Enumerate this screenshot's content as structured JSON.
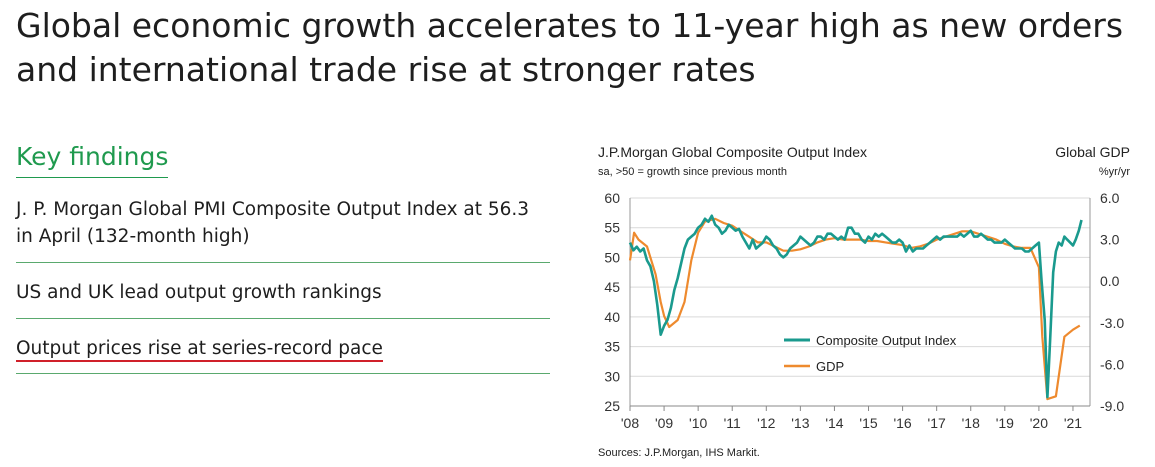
{
  "headline": "Global economic growth accelerates to 11-year high as new orders and international trade rise at stronger rates",
  "key_findings": {
    "title": "Key findings",
    "items": [
      "J. P. Morgan Global PMI Composite Output Index at 56.3 in April (132-month high)",
      "US and UK lead output growth rankings",
      "Output prices rise at series-record pace"
    ]
  },
  "chart_data": {
    "type": "line",
    "title": "J.P.Morgan Global Composite Output Index",
    "subtitle": "sa, >50 = growth since previous month",
    "right_title": "Global GDP",
    "right_unit": "%yr/yr",
    "source": "Sources: J.P.Morgan, IHS Markit.",
    "x_tick_labels": [
      "'08",
      "'09",
      "'10",
      "'11",
      "'12",
      "'13",
      "'14",
      "'15",
      "'16",
      "'17",
      "'18",
      "'19",
      "'20",
      "'21"
    ],
    "xlim": [
      2008,
      2021.5
    ],
    "y_left": {
      "lim": [
        25,
        60
      ],
      "ticks": [
        "25",
        "30",
        "35",
        "40",
        "45",
        "50",
        "55",
        "60"
      ]
    },
    "y_right": {
      "lim": [
        -9.0,
        6.0
      ],
      "ticks": [
        "-9.0",
        "-6.0",
        "-3.0",
        "0.0",
        "3.0",
        "6.0"
      ]
    },
    "colors": {
      "composite": "#1a9a8e",
      "gdp": "#ee8a2e"
    },
    "legend_position": "bottom-center",
    "series": [
      {
        "name": "Composite Output Index",
        "axis": "left",
        "points": [
          [
            2008.0,
            52.5
          ],
          [
            2008.1,
            51.2
          ],
          [
            2008.2,
            51.8
          ],
          [
            2008.3,
            51.0
          ],
          [
            2008.4,
            51.5
          ],
          [
            2008.5,
            49.5
          ],
          [
            2008.6,
            48.5
          ],
          [
            2008.7,
            46.0
          ],
          [
            2008.8,
            42.0
          ],
          [
            2008.9,
            37.0
          ],
          [
            2009.0,
            38.5
          ],
          [
            2009.1,
            39.5
          ],
          [
            2009.2,
            41.5
          ],
          [
            2009.3,
            44.5
          ],
          [
            2009.4,
            46.5
          ],
          [
            2009.5,
            49.0
          ],
          [
            2009.6,
            51.5
          ],
          [
            2009.7,
            53.0
          ],
          [
            2009.8,
            53.5
          ],
          [
            2009.9,
            54.0
          ],
          [
            2010.0,
            55.0
          ],
          [
            2010.1,
            55.5
          ],
          [
            2010.2,
            56.5
          ],
          [
            2010.3,
            56.0
          ],
          [
            2010.4,
            57.0
          ],
          [
            2010.5,
            55.5
          ],
          [
            2010.6,
            55.0
          ],
          [
            2010.7,
            54.0
          ],
          [
            2010.8,
            54.5
          ],
          [
            2010.9,
            55.5
          ],
          [
            2011.0,
            55.0
          ],
          [
            2011.1,
            54.5
          ],
          [
            2011.2,
            54.8
          ],
          [
            2011.3,
            53.5
          ],
          [
            2011.4,
            52.5
          ],
          [
            2011.5,
            51.5
          ],
          [
            2011.6,
            53.0
          ],
          [
            2011.7,
            51.5
          ],
          [
            2011.8,
            52.0
          ],
          [
            2011.9,
            52.5
          ],
          [
            2012.0,
            53.5
          ],
          [
            2012.1,
            53.0
          ],
          [
            2012.2,
            52.0
          ],
          [
            2012.3,
            51.5
          ],
          [
            2012.4,
            50.5
          ],
          [
            2012.5,
            50.0
          ],
          [
            2012.6,
            50.5
          ],
          [
            2012.7,
            51.5
          ],
          [
            2012.8,
            52.0
          ],
          [
            2012.9,
            52.5
          ],
          [
            2013.0,
            53.5
          ],
          [
            2013.1,
            53.0
          ],
          [
            2013.2,
            52.5
          ],
          [
            2013.3,
            52.0
          ],
          [
            2013.4,
            52.5
          ],
          [
            2013.5,
            53.5
          ],
          [
            2013.6,
            53.5
          ],
          [
            2013.7,
            53.0
          ],
          [
            2013.8,
            54.0
          ],
          [
            2013.9,
            54.0
          ],
          [
            2014.0,
            53.5
          ],
          [
            2014.1,
            53.0
          ],
          [
            2014.2,
            53.5
          ],
          [
            2014.3,
            53.0
          ],
          [
            2014.4,
            55.0
          ],
          [
            2014.5,
            55.0
          ],
          [
            2014.6,
            54.0
          ],
          [
            2014.7,
            54.0
          ],
          [
            2014.8,
            53.0
          ],
          [
            2014.9,
            52.5
          ],
          [
            2015.0,
            53.5
          ],
          [
            2015.1,
            53.0
          ],
          [
            2015.2,
            54.0
          ],
          [
            2015.3,
            53.5
          ],
          [
            2015.4,
            54.0
          ],
          [
            2015.5,
            53.5
          ],
          [
            2015.6,
            53.0
          ],
          [
            2015.7,
            52.5
          ],
          [
            2015.8,
            52.5
          ],
          [
            2015.9,
            53.0
          ],
          [
            2016.0,
            52.5
          ],
          [
            2016.1,
            51.0
          ],
          [
            2016.2,
            52.0
          ],
          [
            2016.3,
            51.0
          ],
          [
            2016.4,
            51.5
          ],
          [
            2016.5,
            51.5
          ],
          [
            2016.6,
            51.5
          ],
          [
            2016.7,
            52.0
          ],
          [
            2016.8,
            52.5
          ],
          [
            2016.9,
            53.0
          ],
          [
            2017.0,
            53.5
          ],
          [
            2017.1,
            53.0
          ],
          [
            2017.2,
            53.5
          ],
          [
            2017.3,
            53.5
          ],
          [
            2017.4,
            53.5
          ],
          [
            2017.5,
            53.5
          ],
          [
            2017.6,
            53.5
          ],
          [
            2017.7,
            54.0
          ],
          [
            2017.8,
            53.5
          ],
          [
            2017.9,
            54.0
          ],
          [
            2018.0,
            54.5
          ],
          [
            2018.1,
            53.5
          ],
          [
            2018.2,
            53.5
          ],
          [
            2018.3,
            54.0
          ],
          [
            2018.4,
            53.5
          ],
          [
            2018.5,
            53.0
          ],
          [
            2018.6,
            53.0
          ],
          [
            2018.7,
            52.5
          ],
          [
            2018.8,
            52.5
          ],
          [
            2018.9,
            52.5
          ],
          [
            2019.0,
            53.0
          ],
          [
            2019.1,
            52.5
          ],
          [
            2019.2,
            52.0
          ],
          [
            2019.3,
            51.5
          ],
          [
            2019.4,
            51.5
          ],
          [
            2019.5,
            51.5
          ],
          [
            2019.6,
            51.0
          ],
          [
            2019.7,
            51.0
          ],
          [
            2019.8,
            51.5
          ],
          [
            2019.9,
            52.0
          ],
          [
            2020.0,
            52.5
          ],
          [
            2020.08,
            46.0
          ],
          [
            2020.17,
            39.5
          ],
          [
            2020.25,
            26.5
          ],
          [
            2020.33,
            36.0
          ],
          [
            2020.42,
            47.5
          ],
          [
            2020.5,
            51.0
          ],
          [
            2020.58,
            52.5
          ],
          [
            2020.67,
            52.0
          ],
          [
            2020.75,
            53.5
          ],
          [
            2020.83,
            53.0
          ],
          [
            2020.92,
            52.5
          ],
          [
            2021.0,
            52.0
          ],
          [
            2021.08,
            53.0
          ],
          [
            2021.17,
            54.5
          ],
          [
            2021.25,
            56.3
          ]
        ]
      },
      {
        "name": "GDP",
        "axis": "right",
        "points": [
          [
            2008.0,
            1.5
          ],
          [
            2008.12,
            3.5
          ],
          [
            2008.25,
            3.0
          ],
          [
            2008.5,
            2.5
          ],
          [
            2008.75,
            0.5
          ],
          [
            2008.9,
            -1.5
          ],
          [
            2009.0,
            -2.5
          ],
          [
            2009.15,
            -3.3
          ],
          [
            2009.4,
            -2.8
          ],
          [
            2009.6,
            -1.5
          ],
          [
            2009.8,
            1.5
          ],
          [
            2010.0,
            3.5
          ],
          [
            2010.2,
            4.3
          ],
          [
            2010.5,
            4.5
          ],
          [
            2010.75,
            4.2
          ],
          [
            2011.0,
            4.0
          ],
          [
            2011.25,
            3.6
          ],
          [
            2011.5,
            3.2
          ],
          [
            2011.75,
            2.8
          ],
          [
            2012.0,
            2.8
          ],
          [
            2012.25,
            2.5
          ],
          [
            2012.5,
            2.2
          ],
          [
            2012.75,
            2.2
          ],
          [
            2013.0,
            2.3
          ],
          [
            2013.25,
            2.5
          ],
          [
            2013.5,
            2.8
          ],
          [
            2013.75,
            3.0
          ],
          [
            2014.0,
            3.1
          ],
          [
            2014.25,
            3.0
          ],
          [
            2014.5,
            3.0
          ],
          [
            2014.75,
            3.0
          ],
          [
            2015.0,
            2.9
          ],
          [
            2015.25,
            2.9
          ],
          [
            2015.5,
            2.8
          ],
          [
            2015.75,
            2.7
          ],
          [
            2016.0,
            2.6
          ],
          [
            2016.25,
            2.4
          ],
          [
            2016.5,
            2.5
          ],
          [
            2016.75,
            2.7
          ],
          [
            2017.0,
            3.0
          ],
          [
            2017.25,
            3.2
          ],
          [
            2017.5,
            3.4
          ],
          [
            2017.75,
            3.6
          ],
          [
            2018.0,
            3.6
          ],
          [
            2018.25,
            3.4
          ],
          [
            2018.5,
            3.2
          ],
          [
            2018.75,
            3.0
          ],
          [
            2019.0,
            2.7
          ],
          [
            2019.25,
            2.5
          ],
          [
            2019.5,
            2.4
          ],
          [
            2019.75,
            2.4
          ],
          [
            2020.0,
            1.0
          ],
          [
            2020.1,
            -4.0
          ],
          [
            2020.25,
            -8.5
          ],
          [
            2020.5,
            -8.3
          ],
          [
            2020.75,
            -4.0
          ],
          [
            2021.0,
            -3.5
          ],
          [
            2021.2,
            -3.2
          ]
        ]
      }
    ]
  }
}
